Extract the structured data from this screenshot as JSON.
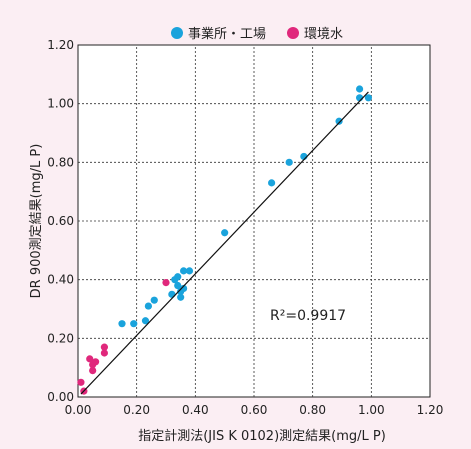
{
  "chart_data": {
    "type": "scatter",
    "title": "",
    "legend": {
      "placement": "top-center",
      "entries": [
        {
          "name": "事業所・工場",
          "color": "#1aa3dc"
        },
        {
          "name": "環境水",
          "color": "#e0287c"
        }
      ]
    },
    "xlabel": "指定計測法(JIS K 0102)測定結果(mg/L P)",
    "ylabel": "DR 900測定結果(mg/L P)",
    "xlim": [
      0,
      1.2
    ],
    "ylim": [
      0,
      1.2
    ],
    "xticks": [
      "0.00",
      "0.20",
      "0.40",
      "0.60",
      "0.80",
      "1.00",
      "1.20"
    ],
    "yticks": [
      "0.00",
      "0.20",
      "0.40",
      "0.60",
      "0.80",
      "1.00",
      "1.20"
    ],
    "grid": true,
    "annotation": "R²=0.9917",
    "regression": {
      "x": [
        0.01,
        0.99
      ],
      "y": [
        0.01,
        1.04
      ]
    },
    "series": [
      {
        "name": "事業所・工場",
        "color": "#1aa3dc",
        "points": [
          [
            0.15,
            0.25
          ],
          [
            0.19,
            0.25
          ],
          [
            0.23,
            0.26
          ],
          [
            0.24,
            0.31
          ],
          [
            0.26,
            0.33
          ],
          [
            0.32,
            0.35
          ],
          [
            0.33,
            0.4
          ],
          [
            0.34,
            0.41
          ],
          [
            0.34,
            0.38
          ],
          [
            0.35,
            0.34
          ],
          [
            0.35,
            0.36
          ],
          [
            0.36,
            0.37
          ],
          [
            0.36,
            0.43
          ],
          [
            0.38,
            0.43
          ],
          [
            0.5,
            0.56
          ],
          [
            0.66,
            0.73
          ],
          [
            0.72,
            0.8
          ],
          [
            0.77,
            0.82
          ],
          [
            0.89,
            0.94
          ],
          [
            0.96,
            1.05
          ],
          [
            0.96,
            1.02
          ],
          [
            0.99,
            1.02
          ]
        ]
      },
      {
        "name": "環境水",
        "color": "#e0287c",
        "points": [
          [
            0.01,
            0.05
          ],
          [
            0.02,
            0.02
          ],
          [
            0.04,
            0.13
          ],
          [
            0.05,
            0.11
          ],
          [
            0.06,
            0.12
          ],
          [
            0.05,
            0.09
          ],
          [
            0.09,
            0.15
          ],
          [
            0.09,
            0.17
          ],
          [
            0.3,
            0.39
          ]
        ]
      }
    ]
  }
}
